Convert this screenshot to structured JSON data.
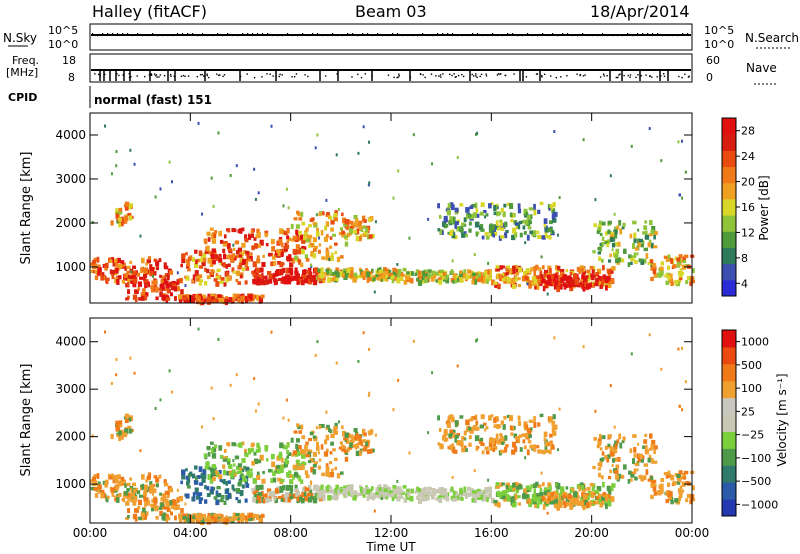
{
  "header": {
    "station": "Halley (fitACF)",
    "beam": "Beam 03",
    "date": "18/Apr/2014"
  },
  "top_panel": {
    "left_label": "N.Sky",
    "right_label": "N.Search",
    "left_ticks": [
      "10^5",
      "10^0"
    ],
    "right_ticks": [
      "10^5",
      "10^0"
    ],
    "freq_label_1": "Freq.",
    "freq_label_2": "[MHz]",
    "freq_ticks": [
      "18",
      "8"
    ],
    "nave_label": "Nave",
    "nave_ticks": [
      "60",
      "0"
    ],
    "cpid_label": "CPID",
    "cpid_text": "normal (fast) 151"
  },
  "chart_data": [
    {
      "type": "heatmap",
      "name": "power",
      "ylabel": "Slant Range [km]",
      "xlabel": "",
      "ylim": [
        180,
        4500
      ],
      "yticks": [
        1000,
        2000,
        3000,
        4000
      ],
      "colorbar": {
        "label": "Power [dB]",
        "ticks": [
          "28",
          "24",
          "20",
          "16",
          "12",
          "8",
          "4"
        ],
        "colors": [
          "#2b2bd6",
          "#3c4fb0",
          "#2e7a5a",
          "#4f9a3a",
          "#8fc43a",
          "#d9d62a",
          "#f0a020",
          "#f07a18",
          "#e84a10",
          "#d81c10",
          "#e01010"
        ]
      }
    },
    {
      "type": "heatmap",
      "name": "velocity",
      "ylabel": "Slant Range [km]",
      "xlabel": "Time UT",
      "ylim": [
        180,
        4500
      ],
      "yticks": [
        1000,
        2000,
        3000,
        4000
      ],
      "xticks": [
        "00:00",
        "04:00",
        "08:00",
        "12:00",
        "16:00",
        "20:00",
        "00:00"
      ],
      "colorbar": {
        "label": "Velocity [m s⁻¹]",
        "ticks": [
          "1000",
          "500",
          "100",
          "25",
          "−25",
          "−100",
          "−500",
          "−1000"
        ],
        "colors": [
          "#2438b0",
          "#2a5aa8",
          "#2f7a6a",
          "#4f9a48",
          "#7ccf3c",
          "#c8c8b4",
          "#c8c8c0",
          "#f0a030",
          "#f07a18",
          "#ea4a10",
          "#e01010"
        ]
      }
    }
  ]
}
